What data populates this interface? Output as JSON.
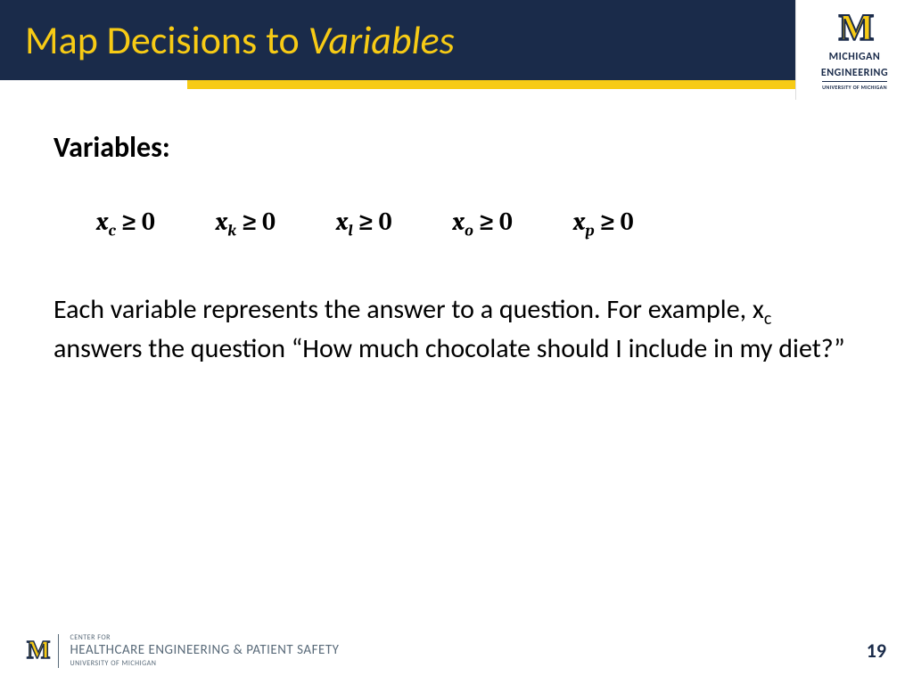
{
  "colors": {
    "header_bg": "#1a2b4a",
    "accent_yellow": "#f7cb15",
    "text_black": "#000000",
    "footer_gray": "#5a6b7a",
    "page_bg": "#ffffff"
  },
  "header": {
    "title_part1": "Map Decisions to ",
    "title_part2_italic": "Variables",
    "title_fontsize": 44
  },
  "logo": {
    "glyph": "M",
    "line1": "MICHIGAN",
    "line2": "ENGINEERING",
    "line3": "UNIVERSITY OF MICHIGAN"
  },
  "content": {
    "heading": "Variables:",
    "heading_fontsize": 32,
    "constraints": [
      {
        "var": "x",
        "sub": "c",
        "rel": "≥",
        "rhs": "0"
      },
      {
        "var": "x",
        "sub": "k",
        "rel": "≥",
        "rhs": "0"
      },
      {
        "var": "x",
        "sub": "l",
        "rel": "≥",
        "rhs": "0"
      },
      {
        "var": "x",
        "sub": "o",
        "rel": "≥",
        "rhs": "0"
      },
      {
        "var": "x",
        "sub": "p",
        "rel": "≥",
        "rhs": "0"
      }
    ],
    "constraint_fontsize": 28,
    "body_before": "Each variable represents the answer to a question. For example, x",
    "body_sub": "c",
    "body_after": " answers the question “How much chocolate should I include in my diet?”",
    "body_fontsize": 30
  },
  "footer": {
    "glyph": "M",
    "line1": "CENTER FOR",
    "line2": "HEALTHCARE ENGINEERING & PATIENT SAFETY",
    "line3": "UNIVERSITY OF MICHIGAN",
    "page_number": "19"
  }
}
